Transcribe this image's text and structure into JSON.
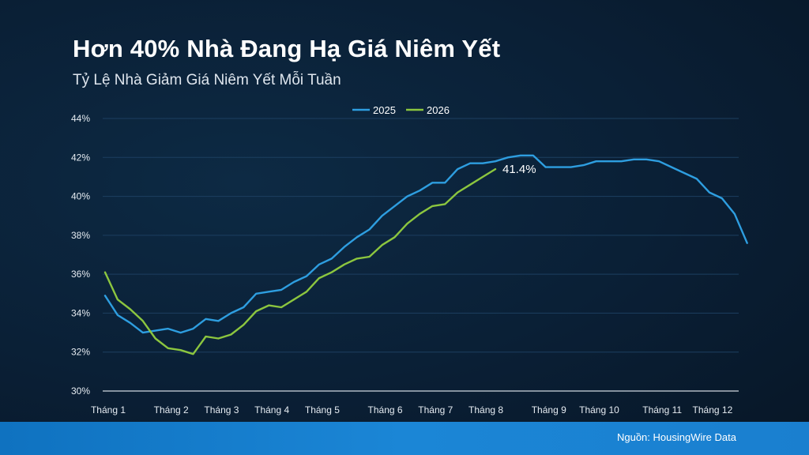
{
  "title": "Hơn 40% Nhà Đang Hạ Giá Niêm Yết",
  "subtitle": "Tỷ Lệ Nhà Giảm Giá Niêm Yết Mỗi Tuần",
  "source": "Nguồn: HousingWire Data",
  "colors": {
    "series_2025": "#2e9ee0",
    "series_2026": "#8cc63f",
    "grid": "#1c3f60",
    "axis": "#d0d8e0"
  },
  "chart_data": {
    "type": "line",
    "title": "Hơn 40% Nhà Đang Hạ Giá Niêm Yết",
    "subtitle": "Tỷ Lệ Nhà Giảm Giá Niêm Yết Mỗi Tuần",
    "ylim": [
      30,
      44
    ],
    "yticks": [
      "30%",
      "32%",
      "34%",
      "36%",
      "38%",
      "40%",
      "42%",
      "44%"
    ],
    "xlim": [
      1,
      52
    ],
    "month_labels": [
      {
        "label": "Tháng 1",
        "week": 1
      },
      {
        "label": "Tháng 2",
        "week": 6
      },
      {
        "label": "Tháng 3",
        "week": 10
      },
      {
        "label": "Tháng 4",
        "week": 14
      },
      {
        "label": "Tháng 5",
        "week": 18
      },
      {
        "label": "Tháng 6",
        "week": 23
      },
      {
        "label": "Tháng 7",
        "week": 27
      },
      {
        "label": "Tháng 8",
        "week": 31
      },
      {
        "label": "Tháng 9",
        "week": 36
      },
      {
        "label": "Tháng 10",
        "week": 40
      },
      {
        "label": "Tháng 11",
        "week": 45
      },
      {
        "label": "Tháng 12",
        "week": 49
      }
    ],
    "legend_position": "top-center",
    "grid": true,
    "series": [
      {
        "name": "2025",
        "values": [
          34.9,
          33.9,
          33.5,
          33.0,
          33.1,
          33.2,
          33.0,
          33.2,
          33.7,
          33.6,
          34.0,
          34.3,
          35.0,
          35.1,
          35.2,
          35.6,
          35.9,
          36.5,
          36.8,
          37.4,
          37.9,
          38.3,
          39.0,
          39.5,
          40.0,
          40.3,
          40.7,
          40.7,
          41.4,
          41.7,
          41.7,
          41.8,
          42.0,
          42.1,
          42.1,
          41.5,
          41.5,
          41.5,
          41.6,
          41.8,
          41.8,
          41.8,
          41.9,
          41.9,
          41.8,
          41.5,
          41.2,
          40.9,
          40.2,
          39.9,
          39.1,
          37.6
        ]
      },
      {
        "name": "2026",
        "values": [
          36.1,
          34.7,
          34.2,
          33.6,
          32.7,
          32.2,
          32.1,
          31.9,
          32.8,
          32.7,
          32.9,
          33.4,
          34.1,
          34.4,
          34.3,
          34.7,
          35.1,
          35.8,
          36.1,
          36.5,
          36.8,
          36.9,
          37.5,
          37.9,
          38.6,
          39.1,
          39.5,
          39.6,
          40.2,
          40.6,
          41.0,
          41.4
        ]
      }
    ],
    "annotation": {
      "text": "41.4%",
      "series": "2026",
      "week": 32
    }
  }
}
